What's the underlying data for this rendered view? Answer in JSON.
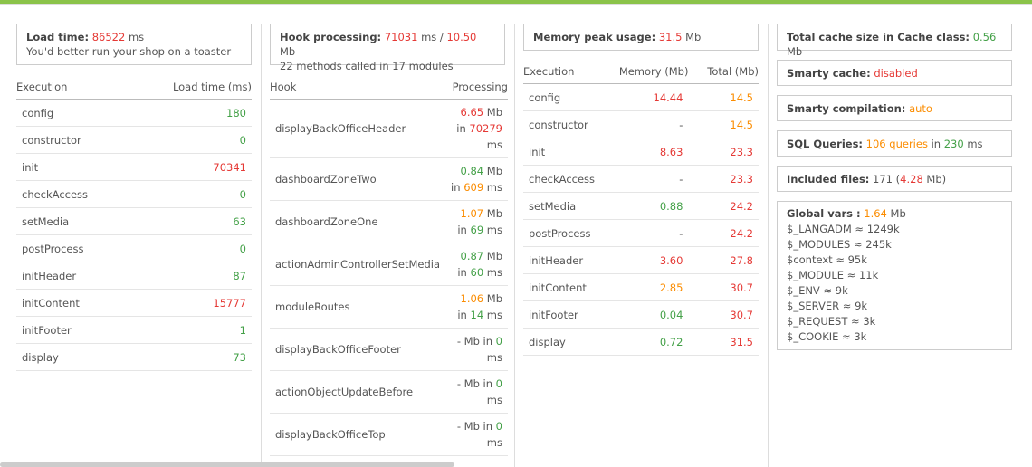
{
  "col1": {
    "load_time_label": "Load time:",
    "load_time_value": "86522",
    "load_time_unit": "ms",
    "toaster_msg": "You'd better run your shop on a toaster",
    "headers": [
      "Execution",
      "Load time (ms)"
    ],
    "rows": [
      {
        "name": "config",
        "value": "180",
        "color": "green"
      },
      {
        "name": "constructor",
        "value": "0",
        "color": "green"
      },
      {
        "name": "init",
        "value": "70341",
        "color": "red"
      },
      {
        "name": "checkAccess",
        "value": "0",
        "color": "green"
      },
      {
        "name": "setMedia",
        "value": "63",
        "color": "green"
      },
      {
        "name": "postProcess",
        "value": "0",
        "color": "green"
      },
      {
        "name": "initHeader",
        "value": "87",
        "color": "green"
      },
      {
        "name": "initContent",
        "value": "15777",
        "color": "red"
      },
      {
        "name": "initFooter",
        "value": "1",
        "color": "green"
      },
      {
        "name": "display",
        "value": "73",
        "color": "green"
      }
    ]
  },
  "col2": {
    "hook_label": "Hook processing:",
    "hook_ms": "71031",
    "hook_ms_unit": "ms /",
    "hook_mb": "10.50",
    "hook_mb_unit": "Mb",
    "methods_msg": "22 methods called in 17 modules",
    "headers": [
      "Hook",
      "Processing"
    ],
    "rows": [
      {
        "name": "displayBackOfficeHeader",
        "mem": "6.65",
        "mem_color": "red",
        "mb": "Mb",
        "in": "in",
        "time": "70279",
        "time_color": "red",
        "ms": "ms"
      },
      {
        "name": "dashboardZoneTwo",
        "mem": "0.84",
        "mem_color": "green",
        "mb": "Mb",
        "in": "in",
        "time": "609",
        "time_color": "orange",
        "ms": "ms"
      },
      {
        "name": "dashboardZoneOne",
        "mem": "1.07",
        "mem_color": "orange",
        "mb": "Mb",
        "in": "in",
        "time": "69",
        "time_color": "green",
        "ms": "ms"
      },
      {
        "name": "actionAdminControllerSetMedia",
        "mem": "0.87",
        "mem_color": "green",
        "mb": "Mb",
        "in": "in",
        "time": "60",
        "time_color": "green",
        "ms": "ms"
      },
      {
        "name": "moduleRoutes",
        "mem": "1.06",
        "mem_color": "orange",
        "mb": "Mb",
        "in": "in",
        "time": "14",
        "time_color": "green",
        "ms": "ms"
      },
      {
        "name": "displayBackOfficeFooter",
        "mem": "-",
        "mem_color": "plain",
        "mb": "Mb",
        "in": "in",
        "time": "0",
        "time_color": "green",
        "ms": "ms"
      },
      {
        "name": "actionObjectUpdateBefore",
        "mem": "-",
        "mem_color": "plain",
        "mb": "Mb",
        "in": "in",
        "time": "0",
        "time_color": "green",
        "ms": "ms"
      },
      {
        "name": "displayBackOfficeTop",
        "mem": "-",
        "mem_color": "plain",
        "mb": "Mb",
        "in": "in",
        "time": "0",
        "time_color": "green",
        "ms": "ms"
      }
    ]
  },
  "col3": {
    "mem_label": "Memory peak usage:",
    "mem_value": "31.5",
    "mem_unit": "Mb",
    "headers": [
      "Execution",
      "Memory (Mb)",
      "Total (Mb)"
    ],
    "rows": [
      {
        "name": "config",
        "mem": "14.44",
        "mem_color": "red",
        "total": "14.5"
      },
      {
        "name": "constructor",
        "mem": "-",
        "mem_color": "plain",
        "total": "14.5"
      },
      {
        "name": "init",
        "mem": "8.63",
        "mem_color": "red",
        "total": "23.3"
      },
      {
        "name": "checkAccess",
        "mem": "-",
        "mem_color": "plain",
        "total": "23.3"
      },
      {
        "name": "setMedia",
        "mem": "0.88",
        "mem_color": "green",
        "total": "24.2"
      },
      {
        "name": "postProcess",
        "mem": "-",
        "mem_color": "plain",
        "total": "24.2"
      },
      {
        "name": "initHeader",
        "mem": "3.60",
        "mem_color": "red",
        "total": "27.8"
      },
      {
        "name": "initContent",
        "mem": "2.85",
        "mem_color": "orange",
        "total": "30.7"
      },
      {
        "name": "initFooter",
        "mem": "0.04",
        "mem_color": "green",
        "total": "30.7"
      },
      {
        "name": "display",
        "mem": "0.72",
        "mem_color": "green",
        "total": "31.5"
      }
    ],
    "total_colors": [
      "orange",
      "orange",
      "red",
      "red",
      "red",
      "red",
      "red",
      "red",
      "red",
      "red"
    ]
  },
  "col4": {
    "cache_label": "Total cache size in Cache class:",
    "cache_value": "0.56",
    "cache_unit": "Mb",
    "smarty_cache_label": "Smarty cache:",
    "smarty_cache_value": "disabled",
    "smarty_comp_label": "Smarty compilation:",
    "smarty_comp_value": "auto",
    "sql_label": "SQL Queries:",
    "sql_count": "106 queries",
    "sql_in": "in",
    "sql_time": "230",
    "sql_unit": "ms",
    "files_label": "Included files:",
    "files_count": "171",
    "files_size": "4.28",
    "files_unit": "Mb",
    "globals_label": "Global vars :",
    "globals_size": "1.64",
    "globals_unit": "Mb",
    "globals": [
      "$_LANGADM ≈ 1249k",
      "$_MODULES ≈ 245k",
      "$context ≈ 95k",
      "$_MODULE ≈ 11k",
      "$_ENV ≈ 9k",
      "$_SERVER ≈ 9k",
      "$_REQUEST ≈ 3k",
      "$_COOKIE ≈ 3k"
    ]
  },
  "colors": {
    "red": "#e53935",
    "green": "#43a047",
    "orange": "#fb8c00",
    "accent": "#8bc34a"
  }
}
